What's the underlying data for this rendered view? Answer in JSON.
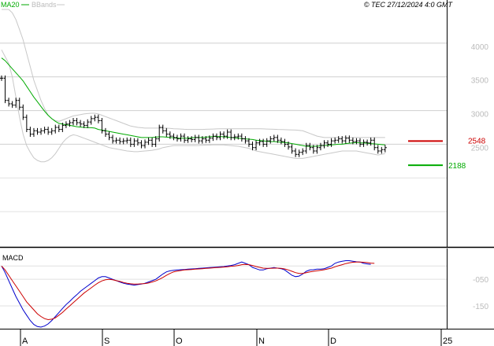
{
  "header": {
    "legend_ma": "MA20",
    "legend_bb": "BBands",
    "copyright": "© TEC 27/12/2024 4:0 GMT"
  },
  "macd_panel": {
    "label": "MACD"
  },
  "colors": {
    "ma": "#00aa00",
    "bands": "#c8c8c8",
    "resistance": "#cc0000",
    "support": "#00aa00",
    "macd": "#0000cc",
    "signal": "#cc0000"
  },
  "levels": {
    "resistance": {
      "label": "2548",
      "value": 2548
    },
    "support": {
      "label": "2188",
      "value": 2188
    }
  },
  "chart_data": [
    {
      "type": "line",
      "title": "",
      "ylim": [
        1000,
        4500
      ],
      "y_ticks": [
        {
          "value": 4000,
          "label": "4000"
        },
        {
          "value": 3500,
          "label": "3500"
        },
        {
          "value": 3000,
          "label": "3000"
        },
        {
          "value": 2500,
          "label": "2500"
        }
      ],
      "x_ticks": [
        {
          "value": 3,
          "label": "A"
        },
        {
          "value": 26,
          "label": "S"
        },
        {
          "value": 46,
          "label": "O"
        },
        {
          "value": 69,
          "label": "N"
        },
        {
          "value": 89,
          "label": "D"
        },
        {
          "value": 112,
          "label": "25"
        }
      ],
      "close": [
        3480,
        3150,
        3100,
        3080,
        3150,
        3050,
        2900,
        2720,
        2650,
        2700,
        2680,
        2700,
        2720,
        2680,
        2700,
        2750,
        2720,
        2780,
        2800,
        2820,
        2850,
        2820,
        2800,
        2780,
        2830,
        2880,
        2900,
        2850,
        2700,
        2650,
        2600,
        2550,
        2560,
        2540,
        2550,
        2560,
        2500,
        2550,
        2520,
        2480,
        2530,
        2560,
        2500,
        2580,
        2750,
        2700,
        2650,
        2620,
        2600,
        2580,
        2620,
        2560,
        2580,
        2570,
        2600,
        2550,
        2580,
        2560,
        2590,
        2620,
        2600,
        2650,
        2620,
        2680,
        2600,
        2610,
        2620,
        2580,
        2550,
        2500,
        2450,
        2520,
        2540,
        2500,
        2550,
        2580,
        2600,
        2560,
        2540,
        2500,
        2460,
        2400,
        2350,
        2380,
        2400,
        2480,
        2450,
        2400,
        2450,
        2480,
        2520,
        2500,
        2550,
        2560,
        2580,
        2550,
        2590,
        2560,
        2540,
        2550,
        2500,
        2530,
        2520,
        2560,
        2450,
        2400,
        2420,
        2450
      ],
      "ma20": [
        3780,
        3740,
        3680,
        3620,
        3560,
        3500,
        3440,
        3360,
        3280,
        3200,
        3130,
        3060,
        2990,
        2930,
        2880,
        2840,
        2810,
        2800,
        2790,
        2780,
        2770,
        2760,
        2755,
        2750,
        2748,
        2745,
        2740,
        2720,
        2710,
        2700,
        2690,
        2680,
        2670,
        2660,
        2650,
        2640,
        2630,
        2620,
        2610,
        2600,
        2600,
        2600,
        2600,
        2605,
        2610,
        2610,
        2605,
        2600,
        2595,
        2590,
        2590,
        2590,
        2590,
        2595,
        2600,
        2600,
        2600,
        2605,
        2610,
        2615,
        2615,
        2615,
        2610,
        2605,
        2600,
        2595,
        2590,
        2585,
        2580,
        2575,
        2570,
        2560,
        2555,
        2550,
        2545,
        2540,
        2540,
        2535,
        2530,
        2525,
        2520,
        2510,
        2500,
        2490,
        2480,
        2470,
        2470,
        2470,
        2470,
        2480,
        2480,
        2485,
        2490,
        2495,
        2500,
        2500,
        2510,
        2515,
        2520,
        2525,
        2520,
        2520,
        2515,
        2510,
        2505,
        2500,
        2495,
        2490
      ],
      "bb_upper": [
        4500,
        4500,
        4500,
        4450,
        4350,
        4200,
        4050,
        3850,
        3650,
        3450,
        3300,
        3150,
        3030,
        2930,
        2880,
        2850,
        2840,
        2860,
        2880,
        2900,
        2920,
        2930,
        2940,
        2950,
        2955,
        2960,
        2960,
        2950,
        2930,
        2910,
        2890,
        2870,
        2850,
        2830,
        2810,
        2790,
        2770,
        2760,
        2750,
        2745,
        2740,
        2740,
        2740,
        2740,
        2740,
        2740,
        2738,
        2735,
        2730,
        2728,
        2725,
        2722,
        2720,
        2720,
        2720,
        2720,
        2720,
        2722,
        2724,
        2726,
        2728,
        2730,
        2730,
        2730,
        2730,
        2730,
        2730,
        2730,
        2730,
        2730,
        2730,
        2730,
        2730,
        2728,
        2726,
        2724,
        2722,
        2720,
        2718,
        2716,
        2714,
        2712,
        2710,
        2706,
        2700,
        2680,
        2660,
        2640,
        2620,
        2610,
        2600,
        2600,
        2600,
        2600,
        2600,
        2600,
        2600,
        2600,
        2600,
        2600,
        2600,
        2600,
        2600,
        2600,
        2600,
        2600,
        2600,
        2600
      ],
      "bb_lower": [
        3900,
        3800,
        3700,
        3500,
        3200,
        2900,
        2650,
        2480,
        2380,
        2300,
        2260,
        2240,
        2240,
        2260,
        2300,
        2360,
        2440,
        2520,
        2580,
        2620,
        2640,
        2630,
        2610,
        2590,
        2570,
        2550,
        2530,
        2510,
        2490,
        2470,
        2450,
        2440,
        2430,
        2420,
        2410,
        2400,
        2395,
        2390,
        2390,
        2395,
        2400,
        2405,
        2410,
        2420,
        2430,
        2450,
        2460,
        2470,
        2480,
        2480,
        2480,
        2480,
        2480,
        2480,
        2480,
        2482,
        2484,
        2486,
        2488,
        2490,
        2490,
        2490,
        2490,
        2485,
        2480,
        2475,
        2470,
        2460,
        2450,
        2440,
        2420,
        2400,
        2390,
        2380,
        2370,
        2360,
        2350,
        2340,
        2330,
        2320,
        2310,
        2300,
        2290,
        2290,
        2290,
        2300,
        2310,
        2320,
        2330,
        2340,
        2350,
        2360,
        2370,
        2380,
        2390,
        2400,
        2400,
        2400,
        2400,
        2400,
        2390,
        2380,
        2370,
        2360,
        2350,
        2340,
        2350,
        2360
      ]
    },
    {
      "type": "line",
      "title": "",
      "ylim": [
        -230,
        60
      ],
      "y_ticks": [
        {
          "value": -50,
          "label": "-050"
        },
        {
          "value": -150,
          "label": "-150"
        }
      ],
      "series": [
        {
          "name": "",
          "values": [
            0,
            -25,
            -55,
            -85,
            -115,
            -140,
            -165,
            -185,
            -205,
            -220,
            -228,
            -230,
            -226,
            -218,
            -205,
            -190,
            -175,
            -160,
            -145,
            -133,
            -120,
            -108,
            -95,
            -85,
            -75,
            -65,
            -55,
            -45,
            -40,
            -40,
            -45,
            -50,
            -55,
            -60,
            -65,
            -68,
            -70,
            -72,
            -70,
            -68,
            -65,
            -60,
            -55,
            -50,
            -40,
            -30,
            -22,
            -18,
            -16,
            -15,
            -14,
            -13,
            -12,
            -11,
            -10,
            -9,
            -8,
            -7,
            -6,
            -5,
            -4,
            -3,
            -2,
            0,
            2,
            5,
            10,
            15,
            10,
            5,
            -5,
            -10,
            -15,
            -15,
            -10,
            -8,
            -6,
            -8,
            -10,
            -15,
            -25,
            -35,
            -40,
            -38,
            -30,
            -20,
            -15,
            -14,
            -12,
            -12,
            -10,
            -5,
            0,
            10,
            15,
            18,
            20,
            20,
            18,
            16,
            15,
            10,
            8,
            6
          ]
        },
        {
          "name": "",
          "values": [
            0,
            -15,
            -35,
            -55,
            -75,
            -95,
            -115,
            -135,
            -150,
            -165,
            -180,
            -190,
            -198,
            -202,
            -200,
            -195,
            -185,
            -175,
            -162,
            -150,
            -138,
            -126,
            -114,
            -102,
            -92,
            -82,
            -72,
            -63,
            -56,
            -52,
            -50,
            -52,
            -55,
            -58,
            -62,
            -65,
            -67,
            -68,
            -68,
            -67,
            -66,
            -64,
            -60,
            -56,
            -50,
            -43,
            -35,
            -28,
            -22,
            -19,
            -17,
            -15,
            -14,
            -13,
            -12,
            -11,
            -10,
            -9,
            -8,
            -7,
            -6,
            -5,
            -4,
            -3,
            -1,
            0,
            2,
            5,
            6,
            5,
            2,
            -2,
            -5,
            -8,
            -9,
            -9,
            -8,
            -8,
            -9,
            -11,
            -15,
            -20,
            -25,
            -28,
            -28,
            -25,
            -22,
            -20,
            -18,
            -16,
            -14,
            -11,
            -8,
            -3,
            1,
            5,
            9,
            12,
            14,
            15,
            15,
            14,
            13,
            11,
            10
          ]
        }
      ]
    }
  ]
}
